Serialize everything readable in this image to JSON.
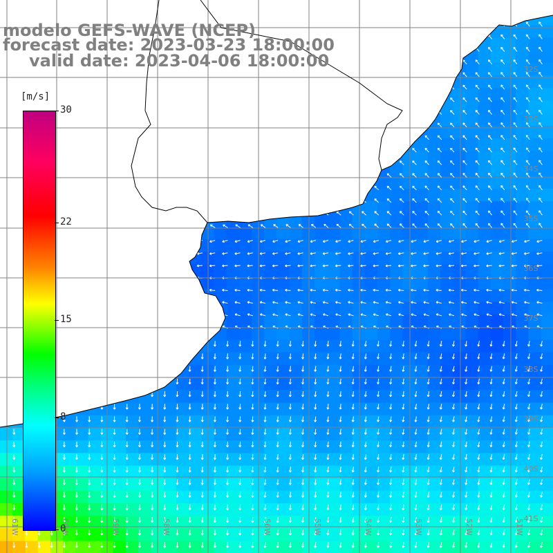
{
  "title": {
    "line1": "modelo GEFS-WAVE (NCEP)",
    "line2": "forecast date: 2023-03-23 18:00:00",
    "line3": "valid date: 2023-04-06 18:00:00"
  },
  "colorbar": {
    "unit": "[m/s]",
    "ticks": [
      {
        "label": "30",
        "value": 30
      },
      {
        "label": "22",
        "value": 22
      },
      {
        "label": "15",
        "value": 15
      },
      {
        "label": "8",
        "value": 8
      },
      {
        "label": "0",
        "value": 0
      }
    ],
    "min": 0,
    "max": 30
  },
  "map": {
    "lat_labels": [
      "32S",
      "33S",
      "34S",
      "35S",
      "36S",
      "37S",
      "38S",
      "39S",
      "40S",
      "41S"
    ],
    "lon_labels": [
      "61W",
      "60W",
      "59W",
      "58W",
      "56W",
      "55W",
      "54W",
      "53W",
      "52W",
      "51W"
    ],
    "colors": {
      "land": "#ffffff",
      "grid": "#808080",
      "coast": "#000000",
      "arrow": "#ffffff"
    }
  }
}
